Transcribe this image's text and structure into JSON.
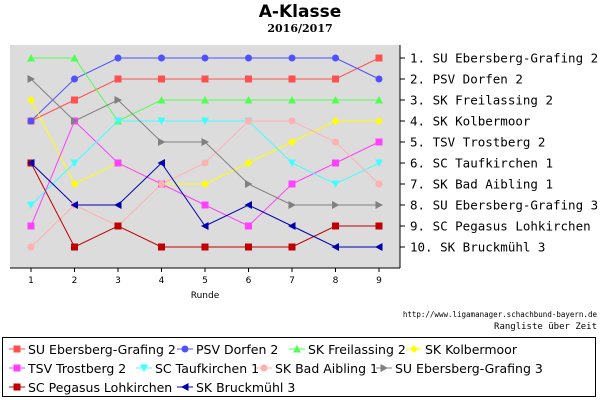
{
  "title": "A-Klasse",
  "subtitle": "2016/2017",
  "source_url": "http://www.ligamanager.schachbund-bayern.de",
  "source_caption": "Rangliste über Zeit",
  "chart_data": {
    "type": "line",
    "xlabel": "Runde",
    "x": [
      1,
      2,
      3,
      4,
      5,
      6,
      7,
      8,
      9
    ],
    "ylim": [
      10,
      1
    ],
    "y_tick_labels": [
      "1. SU Ebersberg-Grafing 2",
      "2. PSV Dorfen 2",
      "3. SK Freilassing 2",
      "4. SK Kolbermoor",
      "5. TSV Trostberg 2",
      "6. SC Taufkirchen 1",
      "7. SK Bad Aibling 1",
      "8. SU Ebersberg-Grafing 3",
      "9. SC Pegasus Lohkirchen",
      "10. SK Bruckmühl 3"
    ],
    "grid": false,
    "background": "#dcdcdc",
    "legend_position": "bottom",
    "series": [
      {
        "name": "SU Ebersberg-Grafing 2",
        "color": "#ff5050",
        "marker": "square",
        "values": [
          4,
          3,
          2,
          2,
          2,
          2,
          2,
          2,
          1
        ]
      },
      {
        "name": "PSV Dorfen 2",
        "color": "#5050ff",
        "marker": "circle",
        "values": [
          4,
          2,
          1,
          1,
          1,
          1,
          1,
          1,
          2
        ]
      },
      {
        "name": "SK Freilassing 2",
        "color": "#50ff50",
        "marker": "triangle-up",
        "values": [
          1,
          1,
          4,
          3,
          3,
          3,
          3,
          3,
          3
        ]
      },
      {
        "name": "SK Kolbermoor",
        "color": "#ffff00",
        "marker": "diamond",
        "values": [
          3,
          7,
          6,
          7,
          7,
          6,
          5,
          4,
          4
        ]
      },
      {
        "name": "TSV Trostberg 2",
        "color": "#ff40ff",
        "marker": "square",
        "values": [
          9,
          4,
          6,
          7,
          8,
          9,
          7,
          6,
          5
        ]
      },
      {
        "name": "SC Taufkirchen 1",
        "color": "#40ffff",
        "marker": "triangle-down",
        "values": [
          8,
          6,
          4,
          4,
          4,
          4,
          6,
          7,
          6
        ]
      },
      {
        "name": "SK Bad Aibling 1",
        "color": "#ffb0b0",
        "marker": "circle",
        "values": [
          10,
          8,
          9,
          7,
          6,
          4,
          4,
          5,
          7
        ]
      },
      {
        "name": "SU Ebersberg-Grafing 3",
        "color": "#808080",
        "marker": "triangle-right",
        "values": [
          2,
          4,
          3,
          5,
          5,
          7,
          8,
          8,
          8
        ]
      },
      {
        "name": "SC Pegasus Lohkirchen",
        "color": "#c00000",
        "marker": "square",
        "values": [
          6,
          10,
          9,
          10,
          10,
          10,
          10,
          9,
          9
        ]
      },
      {
        "name": "SK Bruckmühl 3",
        "color": "#0000b0",
        "marker": "triangle-left",
        "values": [
          6,
          8,
          8,
          6,
          9,
          8,
          9,
          10,
          10
        ]
      }
    ]
  }
}
